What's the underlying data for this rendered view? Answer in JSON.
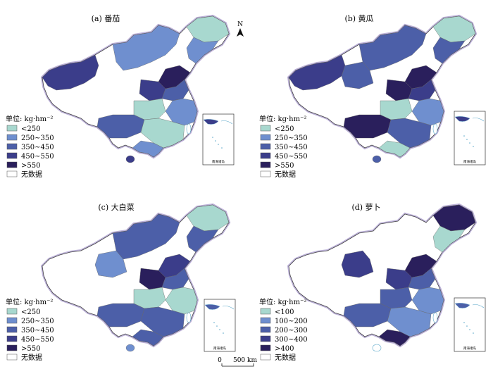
{
  "panels": [
    {
      "title": "(a) 番茄",
      "legend": {
        "title": "单位: kg·hm⁻²",
        "items": [
          {
            "label": "<250",
            "color": "#a8d8cf"
          },
          {
            "label": "250~350",
            "color": "#6f8fcf"
          },
          {
            "label": "350~450",
            "color": "#4c5fa8"
          },
          {
            "label": "450~550",
            "color": "#3b3d8a"
          },
          {
            "label": ">550",
            "color": "#2a1f5c"
          },
          {
            "label": "无数据",
            "color": "#ffffff"
          }
        ]
      }
    },
    {
      "title": "(b) 黄瓜",
      "legend": {
        "title": "单位: kg·hm⁻²",
        "items": [
          {
            "label": "<250",
            "color": "#a8d8cf"
          },
          {
            "label": "250~350",
            "color": "#6f8fcf"
          },
          {
            "label": "350~450",
            "color": "#4c5fa8"
          },
          {
            "label": "450~550",
            "color": "#3b3d8a"
          },
          {
            "label": ">550",
            "color": "#2a1f5c"
          },
          {
            "label": "无数据",
            "color": "#ffffff"
          }
        ]
      }
    },
    {
      "title": "(c) 大白菜",
      "legend": {
        "title": "单位: kg·hm⁻²",
        "items": [
          {
            "label": "<250",
            "color": "#a8d8cf"
          },
          {
            "label": "250~350",
            "color": "#6f8fcf"
          },
          {
            "label": "350~450",
            "color": "#4c5fa8"
          },
          {
            "label": "450~550",
            "color": "#3b3d8a"
          },
          {
            "label": ">550",
            "color": "#2a1f5c"
          },
          {
            "label": "无数据",
            "color": "#ffffff"
          }
        ]
      }
    },
    {
      "title": "(d) 萝卜",
      "legend": {
        "title": "单位: kg·hm⁻²",
        "items": [
          {
            "label": "<100",
            "color": "#a8d8cf"
          },
          {
            "label": "100~200",
            "color": "#6f8fcf"
          },
          {
            "label": "200~300",
            "color": "#4c5fa8"
          },
          {
            "label": "300~400",
            "color": "#3b3d8a"
          },
          {
            "label": ">400",
            "color": "#2a1f5c"
          },
          {
            "label": "无数据",
            "color": "#ffffff"
          }
        ]
      }
    }
  ],
  "inset_label": "南海诸岛",
  "north_label": "N",
  "scale_bar": {
    "zero": "0",
    "distance": "500 km"
  }
}
